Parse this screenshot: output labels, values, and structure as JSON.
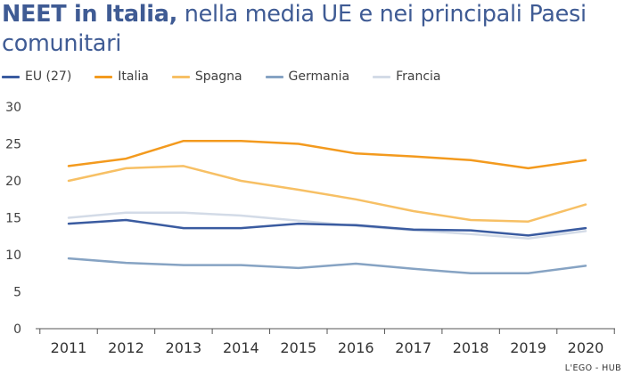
{
  "title_bold": "NEET in Italia,",
  "title_rest": " nella media UE e nei principali Paesi comunitari",
  "credit": "L'EGO - HUB",
  "chart_data": {
    "type": "line",
    "categories": [
      "2011",
      "2012",
      "2013",
      "2014",
      "2015",
      "2016",
      "2017",
      "2018",
      "2019",
      "2020"
    ],
    "ylim": [
      0,
      30
    ],
    "yticks": [
      0,
      5,
      10,
      15,
      20,
      25,
      30
    ],
    "grid": false,
    "legend_placement": "top-left",
    "series": [
      {
        "name": "EU (27)",
        "color": "#3a5ba0",
        "values": [
          14.2,
          14.7,
          13.6,
          13.6,
          14.2,
          14.0,
          13.4,
          13.3,
          12.6,
          13.6
        ]
      },
      {
        "name": "Italia",
        "color": "#f39a1e",
        "values": [
          22.0,
          23.0,
          25.4,
          25.4,
          25.0,
          23.7,
          23.3,
          22.8,
          21.7,
          22.8
        ]
      },
      {
        "name": "Spagna",
        "color": "#f7c065",
        "values": [
          20.0,
          21.7,
          22.0,
          20.0,
          18.8,
          17.5,
          15.9,
          14.7,
          14.5,
          16.8
        ]
      },
      {
        "name": "Germania",
        "color": "#86a3c3",
        "values": [
          9.5,
          8.9,
          8.6,
          8.6,
          8.2,
          8.8,
          8.1,
          7.5,
          7.5,
          8.5
        ]
      },
      {
        "name": "Francia",
        "color": "#d3dbe7",
        "values": [
          15.0,
          15.7,
          15.7,
          15.3,
          14.6,
          13.9,
          13.3,
          12.8,
          12.2,
          13.2
        ]
      }
    ]
  }
}
